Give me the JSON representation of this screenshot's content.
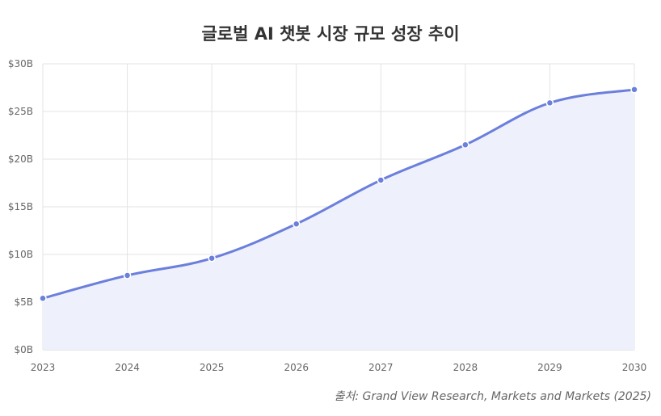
{
  "chart_data": {
    "type": "area",
    "title": "글로벌 AI 챗봇 시장 규모 성장 추이",
    "x": [
      "2023",
      "2024",
      "2025",
      "2026",
      "2027",
      "2028",
      "2029",
      "2030"
    ],
    "series": [
      {
        "values": [
          5.4,
          7.8,
          9.6,
          13.2,
          17.8,
          21.5,
          25.9,
          27.3
        ]
      }
    ],
    "ylim": [
      0,
      30
    ],
    "yticks": [
      0,
      5,
      10,
      15,
      20,
      25,
      30
    ],
    "ytick_labels": [
      "$0B",
      "$5B",
      "$10B",
      "$15B",
      "$20B",
      "$25B",
      "$30B"
    ],
    "grid": true,
    "colors": {
      "line": "#6b7fdc",
      "fill": "#eef0fb",
      "grid": "#e3e3e3"
    }
  },
  "source": "출처: Grand View Research, Markets and Markets (2025)"
}
